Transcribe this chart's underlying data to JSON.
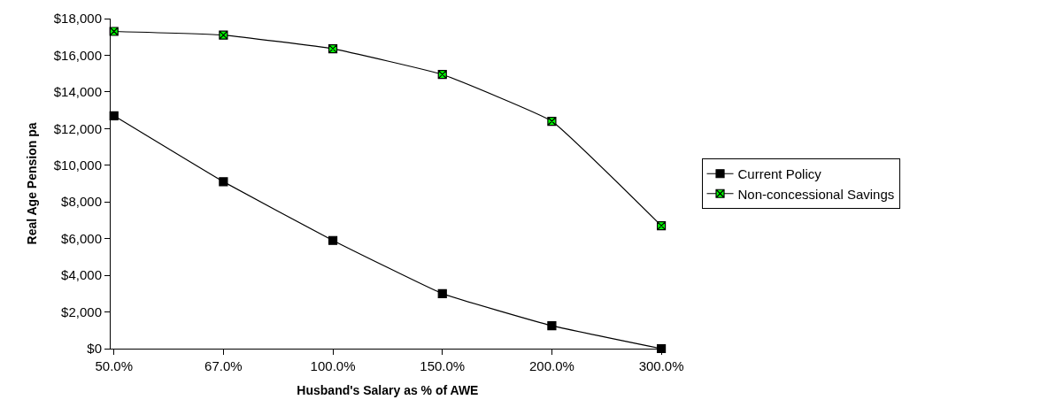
{
  "chart_data": {
    "type": "line",
    "xlabel": "Husband's Salary as % of AWE",
    "ylabel": "Real Age Pension pa",
    "categories": [
      "50.0%",
      "67.0%",
      "100.0%",
      "150.0%",
      "200.0%",
      "300.0%"
    ],
    "series": [
      {
        "name": "Current Policy",
        "color": "#000000",
        "marker": "square",
        "values": [
          12700,
          9100,
          5900,
          3000,
          1250,
          0
        ]
      },
      {
        "name": "Non-concessional Savings",
        "color": "#00ff00",
        "marker": "cross",
        "values": [
          17300,
          17100,
          16350,
          14950,
          12400,
          6700
        ]
      }
    ],
    "ylim": [
      0,
      18000
    ],
    "yticks": [
      {
        "value": 0,
        "label": "$0"
      },
      {
        "value": 2000,
        "label": "$2,000"
      },
      {
        "value": 4000,
        "label": "$4,000"
      },
      {
        "value": 6000,
        "label": "$6,000"
      },
      {
        "value": 8000,
        "label": "$8,000"
      },
      {
        "value": 10000,
        "label": "$10,000"
      },
      {
        "value": 12000,
        "label": "$12,000"
      },
      {
        "value": 14000,
        "label": "$14,000"
      },
      {
        "value": 16000,
        "label": "$16,000"
      },
      {
        "value": 18000,
        "label": "$18,000"
      }
    ],
    "legend": "right",
    "line_style": "solid"
  }
}
